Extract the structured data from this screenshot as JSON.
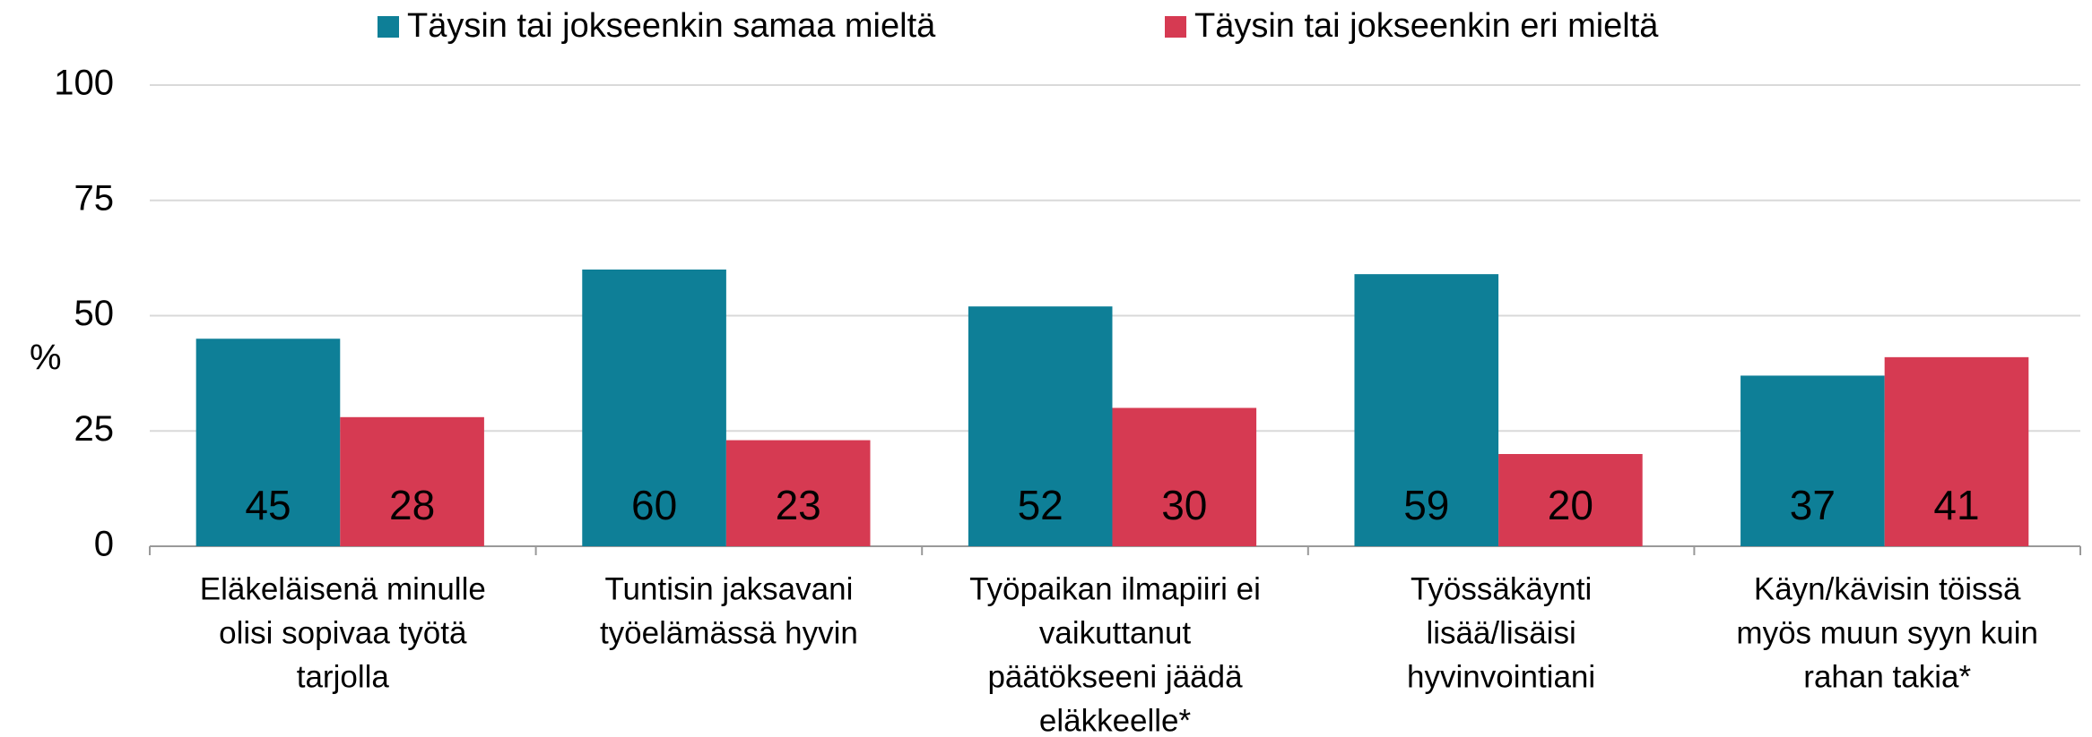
{
  "chart_data": {
    "type": "bar",
    "y_label": "%",
    "categories": [
      [
        "Eläkeläisenä minulle",
        "olisi sopivaa työtä",
        "tarjolla"
      ],
      [
        "Tuntisin jaksavani",
        "työelämässä hyvin"
      ],
      [
        "Työpaikan ilmapiiri ei",
        "vaikuttanut",
        "päätökseeni jäädä",
        "eläkkeelle*"
      ],
      [
        "Työssäkäynti",
        "lisää/lisäisi",
        "hyvinvointiani"
      ],
      [
        "Käyn/kävisin töissä",
        "myös muun syyn kuin",
        "rahan takia*"
      ]
    ],
    "series": [
      {
        "name": "Täysin tai jokseenkin samaa mieltä",
        "color": "#0e7f97",
        "values": [
          45,
          60,
          52,
          59,
          37
        ]
      },
      {
        "name": "Täysin tai jokseenkin eri mieltä",
        "color": "#d63a52",
        "values": [
          28,
          23,
          30,
          20,
          41
        ]
      }
    ],
    "ylim": [
      0,
      100
    ],
    "yticks": [
      0,
      25,
      50,
      75,
      100
    ],
    "grid": true,
    "legend": "top"
  }
}
